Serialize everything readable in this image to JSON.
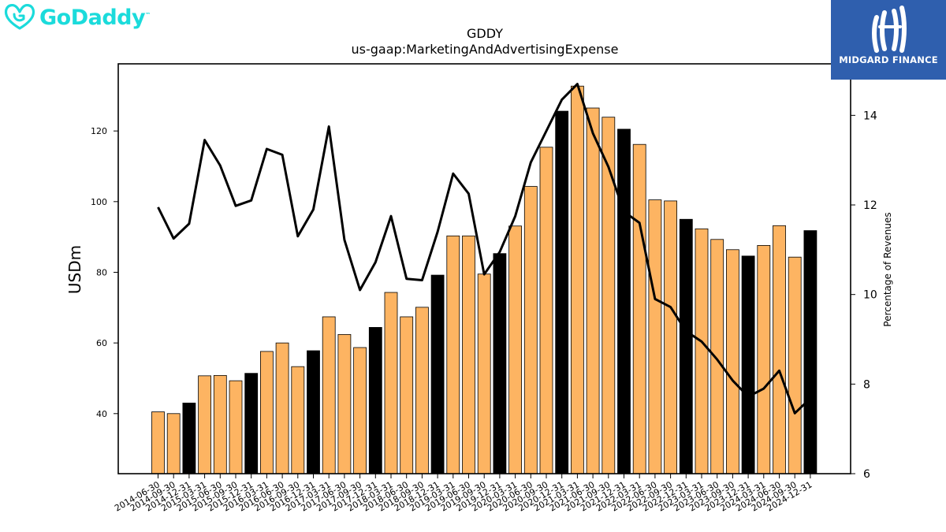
{
  "logos": {
    "left": {
      "text": "GoDaddy",
      "tm": "™",
      "color": "#1bdbdb"
    },
    "right": {
      "text": "MIDGARD FINANCE",
      "bg_color": "#2f5fae"
    }
  },
  "chart_data": {
    "type": "bar",
    "title": "GDDY",
    "subtitle": "us-gaap:MarketingAndAdvertisingExpense",
    "ylabel": "USDm",
    "y2label": "Percentage of Revenues",
    "ylim": [
      23,
      139
    ],
    "y2lim": [
      6,
      15.15
    ],
    "yticks": [
      40,
      60,
      80,
      100,
      120
    ],
    "y2ticks": [
      6,
      8,
      10,
      12,
      14
    ],
    "categories": [
      "2014-06-30",
      "2014-09-30",
      "2014-12-31",
      "2015-03-31",
      "2015-06-30",
      "2015-09-30",
      "2015-12-31",
      "2016-03-31",
      "2016-06-30",
      "2016-09-30",
      "2016-12-31",
      "2017-03-31",
      "2017-06-30",
      "2017-09-30",
      "2017-12-31",
      "2018-03-31",
      "2018-06-30",
      "2018-09-30",
      "2018-12-31",
      "2019-03-31",
      "2019-06-30",
      "2019-09-30",
      "2019-12-31",
      "2020-03-31",
      "2020-06-30",
      "2020-09-30",
      "2020-12-31",
      "2021-03-31",
      "2021-06-30",
      "2021-09-30",
      "2021-12-31",
      "2022-03-31",
      "2022-06-30",
      "2022-09-30",
      "2022-12-31",
      "2023-03-31",
      "2023-06-30",
      "2023-09-30",
      "2023-12-31",
      "2024-03-31",
      "2024-06-30",
      "2024-09-30",
      "2024-12-31"
    ],
    "series": [
      {
        "type": "bar",
        "values": [
          40.5,
          40.0,
          43.0,
          50.7,
          50.8,
          49.3,
          51.4,
          57.6,
          60.0,
          53.3,
          57.8,
          67.4,
          62.4,
          58.7,
          64.4,
          74.3,
          67.4,
          70.1,
          79.2,
          90.3,
          90.3,
          79.5,
          85.3,
          93.1,
          104.3,
          115.4,
          125.6,
          132.7,
          126.5,
          123.9,
          120.5,
          116.2,
          100.5,
          100.2,
          95.0,
          92.3,
          89.3,
          86.4,
          84.6,
          87.6,
          93.2,
          84.3,
          91.8
        ],
        "colors": {
          "quarter": "#fdb462",
          "year_end": "#000000"
        }
      },
      {
        "type": "line",
        "axis": "y2",
        "values": [
          11.95,
          11.25,
          11.58,
          13.45,
          12.88,
          11.98,
          12.1,
          13.25,
          13.12,
          11.3,
          11.9,
          13.75,
          11.22,
          10.1,
          10.72,
          11.75,
          10.35,
          10.32,
          11.4,
          12.7,
          12.25,
          10.45,
          10.95,
          11.75,
          12.95,
          13.65,
          14.35,
          14.7,
          13.6,
          12.85,
          11.85,
          11.6,
          9.9,
          9.72,
          9.18,
          8.95,
          8.55,
          8.08,
          7.72,
          7.9,
          8.3,
          7.35,
          7.68
        ],
        "color": "#000000"
      }
    ]
  }
}
